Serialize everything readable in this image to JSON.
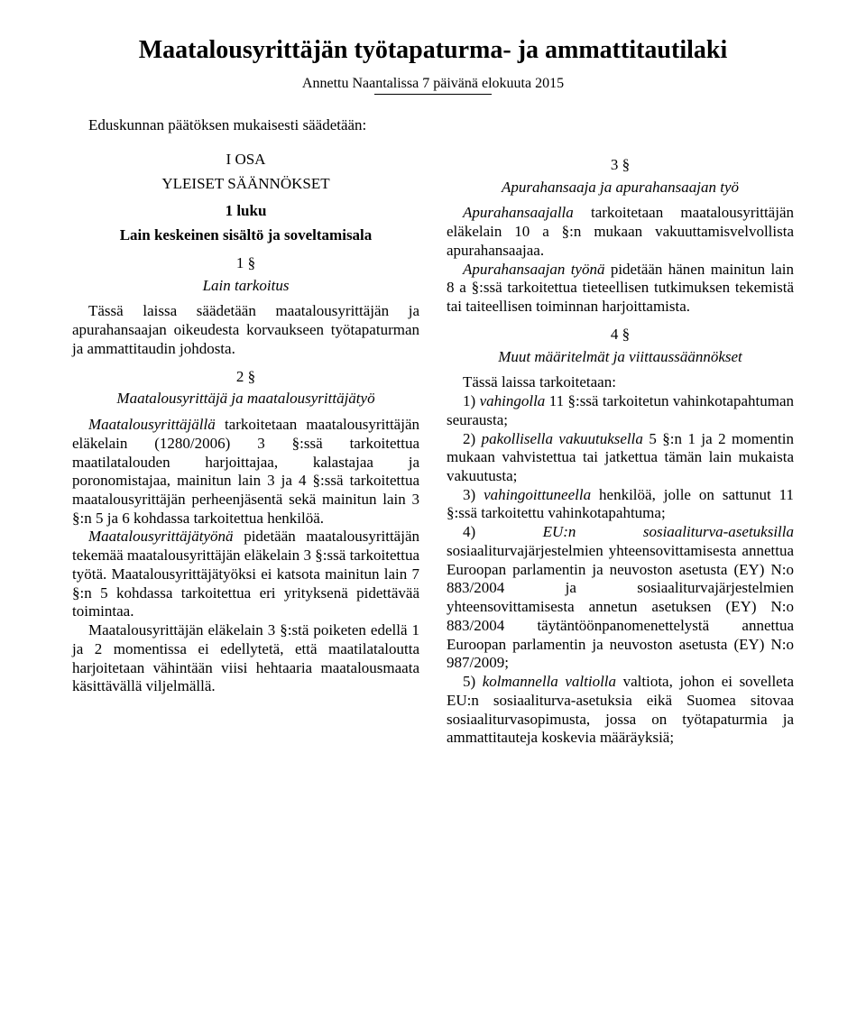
{
  "title": "Maatalousyrittäjän työtapaturma- ja ammattitautilaki",
  "given": "Annettu Naantalissa 7 päivänä elokuuta 2015",
  "preamble": "Eduskunnan päätöksen mukaisesti säädetään:",
  "left": {
    "part_num": "I OSA",
    "part_title": "YLEISET SÄÄNNÖKSET",
    "chapter_num": "1 luku",
    "chapter_title": "Lain keskeinen sisältö ja soveltamisala",
    "s1": {
      "num": "1 §",
      "title": "Lain tarkoitus",
      "p1": "Tässä laissa säädetään maatalousyrittäjän ja apurahansaajan oikeudesta korvaukseen työtapaturman ja ammattitaudin johdosta."
    },
    "s2": {
      "num": "2 §",
      "title": "Maatalousyrittäjä ja maatalousyrittäjätyö",
      "p1_a": "Maatalousyrittäjällä",
      "p1_b": " tarkoitetaan maatalousyrittäjän eläkelain (1280/2006) 3 §:ssä tarkoitettua maatilatalouden harjoittajaa, kalastajaa ja poronomistajaa, mainitun lain 3 ja 4 §:ssä tarkoitettua maatalousyrittäjän perheenjäsentä sekä mainitun lain 3 §:n 5 ja 6 kohdassa tarkoitettua henkilöä.",
      "p2_a": "Maatalousyrittäjätyönä",
      "p2_b": " pidetään maatalousyrittäjän tekemää maatalousyrittäjän eläkelain 3 §:ssä tarkoitettua työtä. Maatalousyrittäjätyöksi ei katsota mainitun lain 7 §:n 5 kohdassa tarkoitettua eri yrityksenä pidettävää toimintaa.",
      "p3": "Maatalousyrittäjän eläkelain 3 §:stä poiketen edellä 1 ja 2 momentissa ei edellytetä, että maatilataloutta harjoitetaan vähintään viisi hehtaaria maatalousmaata käsittävällä viljelmällä."
    }
  },
  "right": {
    "s3": {
      "num": "3 §",
      "title": "Apurahansaaja ja apurahansaajan työ",
      "p1_a": "Apurahansaajalla",
      "p1_b": " tarkoitetaan maatalousyrittäjän eläkelain 10 a §:n mukaan vakuuttamisvelvollista apurahansaajaa.",
      "p2_a": "Apurahansaajan työnä",
      "p2_b": " pidetään hänen mainitun lain 8 a §:ssä tarkoitettua tieteellisen tutkimuksen tekemistä tai taiteellisen toiminnan harjoittamista."
    },
    "s4": {
      "num": "4 §",
      "title": "Muut määritelmät ja viittaussäännökset",
      "intro": "Tässä laissa tarkoitetaan:",
      "i1a": "1) ",
      "i1b": "vahingolla",
      "i1c": " 11 §:ssä tarkoitetun vahinkotapahtuman seurausta;",
      "i2a": "2) ",
      "i2b": "pakollisella vakuutuksella",
      "i2c": " 5 §:n 1 ja 2 momentin mukaan vahvistettua tai jatkettua tämän lain mukaista vakuutusta;",
      "i3a": "3) ",
      "i3b": "vahingoittuneella",
      "i3c": " henkilöä, jolle on sattunut 11 §:ssä tarkoitettu vahinkotapahtuma;",
      "i4a": "4) ",
      "i4b": "EU:n sosiaaliturva-asetuksilla",
      "i4c": " sosiaaliturvajärjestelmien yhteensovittamisesta annettua Euroopan parlamentin ja neuvoston asetusta (EY) N:o 883/2004 ja sosiaaliturvajärjestelmien yhteensovittamisesta annetun asetuksen (EY) N:o 883/2004 täytäntöönpanomenettelystä annettua Euroopan parlamentin ja neuvoston asetusta (EY) N:o 987/2009;",
      "i5a": "5) ",
      "i5b": "kolmannella valtiolla",
      "i5c": " valtiota, johon ei sovelleta EU:n sosiaaliturva-asetuksia eikä Suomea sitovaa sosiaaliturvasopimusta, jossa on työtapaturmia ja ammattitauteja koskevia määräyksiä;"
    }
  }
}
